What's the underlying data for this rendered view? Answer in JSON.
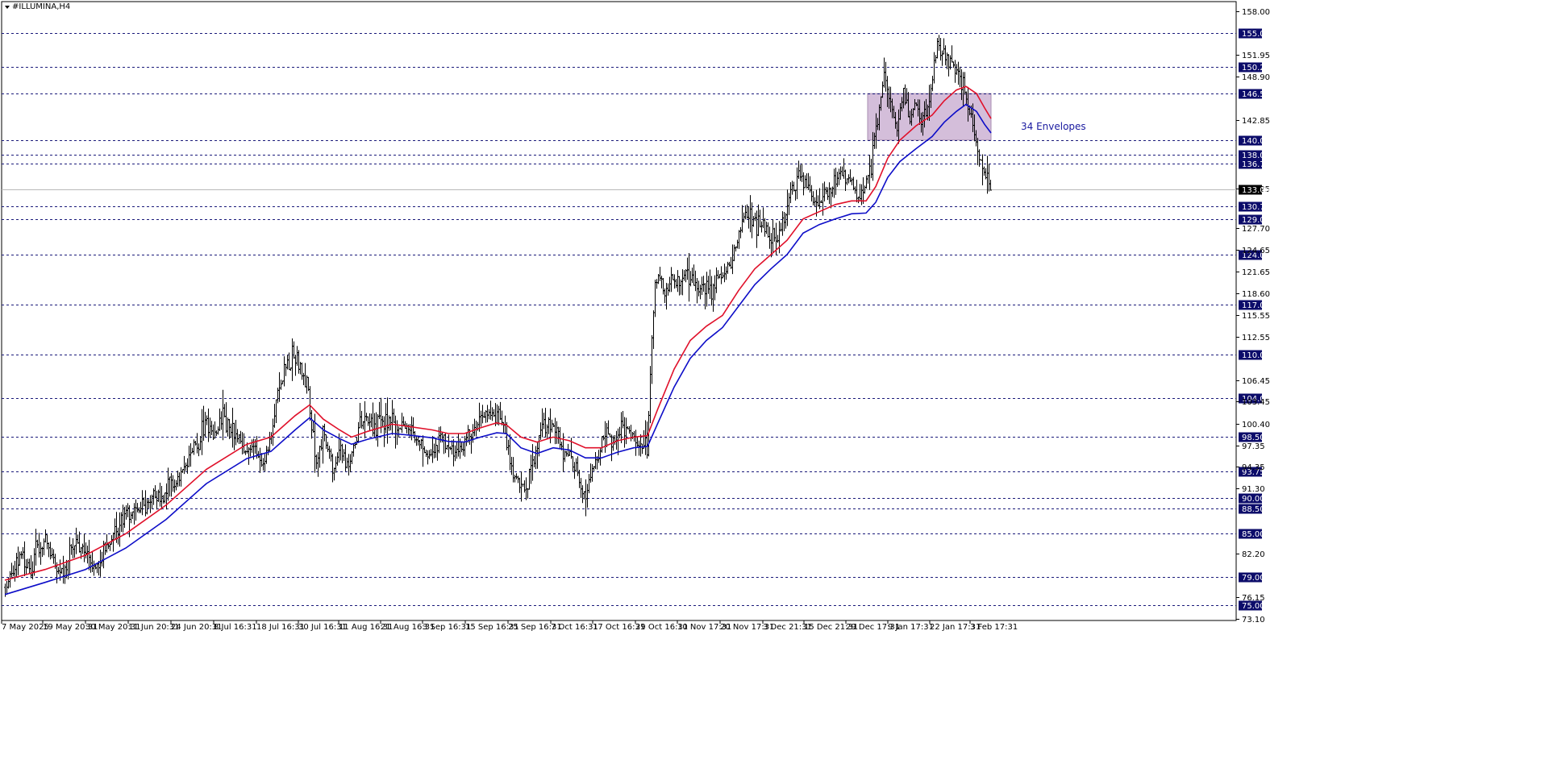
{
  "chart_data": {
    "type": "line",
    "title": "#ILLUMINA,H4",
    "current_price": "133.06",
    "ylim": [
      73.1,
      158.0
    ],
    "y_ticks": [
      "158.00",
      "151.95",
      "148.90",
      "142.85",
      "133.25",
      "127.70",
      "124.65",
      "121.65",
      "118.60",
      "115.55",
      "112.55",
      "106.45",
      "103.45",
      "100.40",
      "97.35",
      "94.35",
      "91.30",
      "82.20",
      "76.15",
      "73.10"
    ],
    "levels": [
      "155.00",
      "150.25",
      "146.50",
      "140.00",
      "138.00",
      "136.75",
      "130.75",
      "129.00",
      "124.00",
      "117.00",
      "110.00",
      "104.00",
      "98.50",
      "93.75",
      "90.00",
      "88.50",
      "85.00",
      "79.00",
      "75.00"
    ],
    "x_labels": [
      "7 May 2025",
      "19 May 20:31",
      "30 May 20:31",
      "11 Jun 20:31",
      "24 Jun 20:31",
      "8 Jul 16:31",
      "18 Jul 16:31",
      "30 Jul 16:31",
      "11 Aug 16:31",
      "21 Aug 16:31",
      "3 Sep 16:31",
      "15 Sep 16:31",
      "25 Sep 16:31",
      "7 Oct 16:31",
      "17 Oct 16:31",
      "29 Oct 16:31",
      "10 Nov 17:31",
      "20 Nov 17:31",
      "3 Dec 21:31",
      "15 Dec 21:31",
      "29 Dec 17:31",
      "9 Jan 17:31",
      "22 Jan 17:31",
      "3 Feb 17:31"
    ],
    "zone": {
      "from": 140.0,
      "to": 146.5
    },
    "annotation": "34 Envelopes",
    "price_path": [
      [
        0,
        77.5
      ],
      [
        10,
        80.0
      ],
      [
        20,
        82.5
      ],
      [
        30,
        80.0
      ],
      [
        40,
        83.0
      ],
      [
        50,
        84.0
      ],
      [
        60,
        81.0
      ],
      [
        70,
        79.5
      ],
      [
        80,
        82.0
      ],
      [
        90,
        84.0
      ],
      [
        100,
        83.0
      ],
      [
        110,
        80.5
      ],
      [
        120,
        82.0
      ],
      [
        130,
        83.5
      ],
      [
        140,
        86.0
      ],
      [
        150,
        88.0
      ],
      [
        160,
        87.5
      ],
      [
        170,
        89.0
      ],
      [
        180,
        90.0
      ],
      [
        190,
        89.5
      ],
      [
        200,
        91.0
      ],
      [
        210,
        92.0
      ],
      [
        220,
        93.5
      ],
      [
        230,
        95.5
      ],
      [
        240,
        98.0
      ],
      [
        250,
        100.5
      ],
      [
        260,
        99.0
      ],
      [
        270,
        101.0
      ],
      [
        280,
        99.5
      ],
      [
        290,
        98.0
      ],
      [
        300,
        97.0
      ],
      [
        310,
        96.5
      ],
      [
        320,
        95.0
      ],
      [
        330,
        99.0
      ],
      [
        340,
        106.0
      ],
      [
        350,
        108.5
      ],
      [
        358,
        110.0
      ],
      [
        368,
        108.0
      ],
      [
        375,
        106.0
      ],
      [
        380,
        100.0
      ],
      [
        385,
        95.0
      ],
      [
        390,
        96.5
      ],
      [
        395,
        99.0
      ],
      [
        400,
        97.0
      ],
      [
        405,
        94.5
      ],
      [
        410,
        95.0
      ],
      [
        418,
        96.0
      ],
      [
        425,
        95.0
      ],
      [
        432,
        97.0
      ],
      [
        440,
        100.0
      ],
      [
        450,
        101.0
      ],
      [
        460,
        100.0
      ],
      [
        470,
        101.0
      ],
      [
        480,
        100.5
      ],
      [
        490,
        99.5
      ],
      [
        500,
        100.0
      ],
      [
        510,
        98.5
      ],
      [
        520,
        97.0
      ],
      [
        530,
        96.0
      ],
      [
        540,
        98.0
      ],
      [
        550,
        97.0
      ],
      [
        560,
        96.5
      ],
      [
        570,
        97.5
      ],
      [
        580,
        99.0
      ],
      [
        590,
        101.0
      ],
      [
        600,
        102.0
      ],
      [
        610,
        101.5
      ],
      [
        620,
        99.0
      ],
      [
        628,
        94.0
      ],
      [
        635,
        92.0
      ],
      [
        645,
        91.5
      ],
      [
        655,
        95.0
      ],
      [
        665,
        100.0
      ],
      [
        675,
        100.5
      ],
      [
        685,
        99.0
      ],
      [
        695,
        96.0
      ],
      [
        705,
        95.0
      ],
      [
        712,
        92.0
      ],
      [
        720,
        91.0
      ],
      [
        728,
        94.0
      ],
      [
        735,
        96.0
      ],
      [
        745,
        99.0
      ],
      [
        755,
        98.0
      ],
      [
        765,
        100.0
      ],
      [
        775,
        99.0
      ],
      [
        785,
        97.5
      ],
      [
        792,
        96.0
      ],
      [
        797,
        98.0
      ],
      [
        801,
        110.0
      ],
      [
        806,
        120.0
      ],
      [
        812,
        121.0
      ],
      [
        818,
        118.0
      ],
      [
        825,
        121.0
      ],
      [
        835,
        120.0
      ],
      [
        845,
        122.0
      ],
      [
        855,
        119.5
      ],
      [
        865,
        120.0
      ],
      [
        875,
        119.0
      ],
      [
        885,
        121.0
      ],
      [
        895,
        122.0
      ],
      [
        905,
        125.0
      ],
      [
        915,
        129.0
      ],
      [
        925,
        129.0
      ],
      [
        935,
        128.0
      ],
      [
        945,
        127.0
      ],
      [
        955,
        126.0
      ],
      [
        965,
        129.0
      ],
      [
        975,
        133.0
      ],
      [
        985,
        135.0
      ],
      [
        995,
        133.5
      ],
      [
        1005,
        131.0
      ],
      [
        1015,
        131.5
      ],
      [
        1025,
        134.0
      ],
      [
        1035,
        135.0
      ],
      [
        1045,
        134.0
      ],
      [
        1055,
        133.0
      ],
      [
        1065,
        132.0
      ],
      [
        1075,
        137.0
      ],
      [
        1082,
        143.0
      ],
      [
        1090,
        148.5
      ],
      [
        1098,
        146.0
      ],
      [
        1106,
        142.0
      ],
      [
        1114,
        146.0
      ],
      [
        1122,
        143.0
      ],
      [
        1130,
        145.0
      ],
      [
        1138,
        142.0
      ],
      [
        1146,
        145.0
      ],
      [
        1150,
        148.0
      ],
      [
        1156,
        154.0
      ],
      [
        1162,
        152.0
      ],
      [
        1168,
        151.5
      ],
      [
        1176,
        150.5
      ],
      [
        1184,
        148.0
      ],
      [
        1190,
        147.0
      ],
      [
        1196,
        144.0
      ],
      [
        1202,
        141.0
      ],
      [
        1207,
        138.0
      ],
      [
        1212,
        135.5
      ],
      [
        1217,
        134.5
      ],
      [
        1223,
        133.06
      ]
    ],
    "series": [
      {
        "color": "#e0102a",
        "values": [
          [
            0,
            78.5
          ],
          [
            50,
            80.0
          ],
          [
            100,
            82.0
          ],
          [
            150,
            85.0
          ],
          [
            200,
            89.0
          ],
          [
            250,
            94.0
          ],
          [
            300,
            97.5
          ],
          [
            330,
            98.5
          ],
          [
            360,
            101.5
          ],
          [
            378,
            103.0
          ],
          [
            395,
            101.0
          ],
          [
            415,
            99.5
          ],
          [
            430,
            98.5
          ],
          [
            450,
            99.3
          ],
          [
            480,
            100.3
          ],
          [
            500,
            100.0
          ],
          [
            530,
            99.5
          ],
          [
            550,
            99.0
          ],
          [
            570,
            99.0
          ],
          [
            590,
            99.8
          ],
          [
            610,
            100.5
          ],
          [
            622,
            100.2
          ],
          [
            640,
            98.5
          ],
          [
            660,
            97.8
          ],
          [
            680,
            98.5
          ],
          [
            700,
            98.0
          ],
          [
            720,
            97.0
          ],
          [
            740,
            97.0
          ],
          [
            760,
            98.0
          ],
          [
            780,
            98.5
          ],
          [
            797,
            98.7
          ],
          [
            810,
            102.5
          ],
          [
            830,
            108.0
          ],
          [
            850,
            112.0
          ],
          [
            870,
            114.0
          ],
          [
            890,
            115.5
          ],
          [
            910,
            119.0
          ],
          [
            930,
            122.0
          ],
          [
            950,
            124.0
          ],
          [
            970,
            126.0
          ],
          [
            990,
            129.0
          ],
          [
            1010,
            130.0
          ],
          [
            1030,
            131.0
          ],
          [
            1050,
            131.5
          ],
          [
            1068,
            131.5
          ],
          [
            1080,
            133.5
          ],
          [
            1095,
            137.5
          ],
          [
            1110,
            140.0
          ],
          [
            1130,
            142.0
          ],
          [
            1150,
            143.5
          ],
          [
            1165,
            145.5
          ],
          [
            1180,
            147.0
          ],
          [
            1192,
            147.5
          ],
          [
            1205,
            146.5
          ],
          [
            1215,
            144.5
          ],
          [
            1223,
            143.0
          ]
        ]
      },
      {
        "color": "#0d0dc8",
        "values": [
          [
            0,
            76.5
          ],
          [
            50,
            78.2
          ],
          [
            100,
            80.0
          ],
          [
            150,
            83.0
          ],
          [
            200,
            87.0
          ],
          [
            250,
            92.0
          ],
          [
            300,
            95.5
          ],
          [
            330,
            96.5
          ],
          [
            360,
            99.5
          ],
          [
            378,
            101.2
          ],
          [
            395,
            99.5
          ],
          [
            415,
            98.3
          ],
          [
            430,
            97.5
          ],
          [
            450,
            98.2
          ],
          [
            480,
            99.0
          ],
          [
            500,
            98.8
          ],
          [
            530,
            98.4
          ],
          [
            550,
            97.9
          ],
          [
            570,
            97.8
          ],
          [
            590,
            98.5
          ],
          [
            610,
            99.1
          ],
          [
            622,
            99.0
          ],
          [
            640,
            97.0
          ],
          [
            660,
            96.2
          ],
          [
            680,
            97.0
          ],
          [
            700,
            96.7
          ],
          [
            720,
            95.6
          ],
          [
            740,
            95.6
          ],
          [
            760,
            96.4
          ],
          [
            780,
            97.0
          ],
          [
            797,
            97.2
          ],
          [
            810,
            100.5
          ],
          [
            830,
            105.5
          ],
          [
            850,
            109.5
          ],
          [
            870,
            112.0
          ],
          [
            890,
            113.8
          ],
          [
            910,
            116.8
          ],
          [
            930,
            119.8
          ],
          [
            950,
            122.0
          ],
          [
            970,
            124.0
          ],
          [
            990,
            127.0
          ],
          [
            1010,
            128.2
          ],
          [
            1030,
            129.0
          ],
          [
            1050,
            129.7
          ],
          [
            1068,
            129.8
          ],
          [
            1080,
            131.3
          ],
          [
            1095,
            134.8
          ],
          [
            1110,
            137.0
          ],
          [
            1130,
            138.8
          ],
          [
            1150,
            140.5
          ],
          [
            1165,
            142.5
          ],
          [
            1180,
            144.0
          ],
          [
            1192,
            145.0
          ],
          [
            1205,
            144.0
          ],
          [
            1215,
            142.2
          ],
          [
            1223,
            141.0
          ]
        ]
      }
    ],
    "grid": false
  }
}
